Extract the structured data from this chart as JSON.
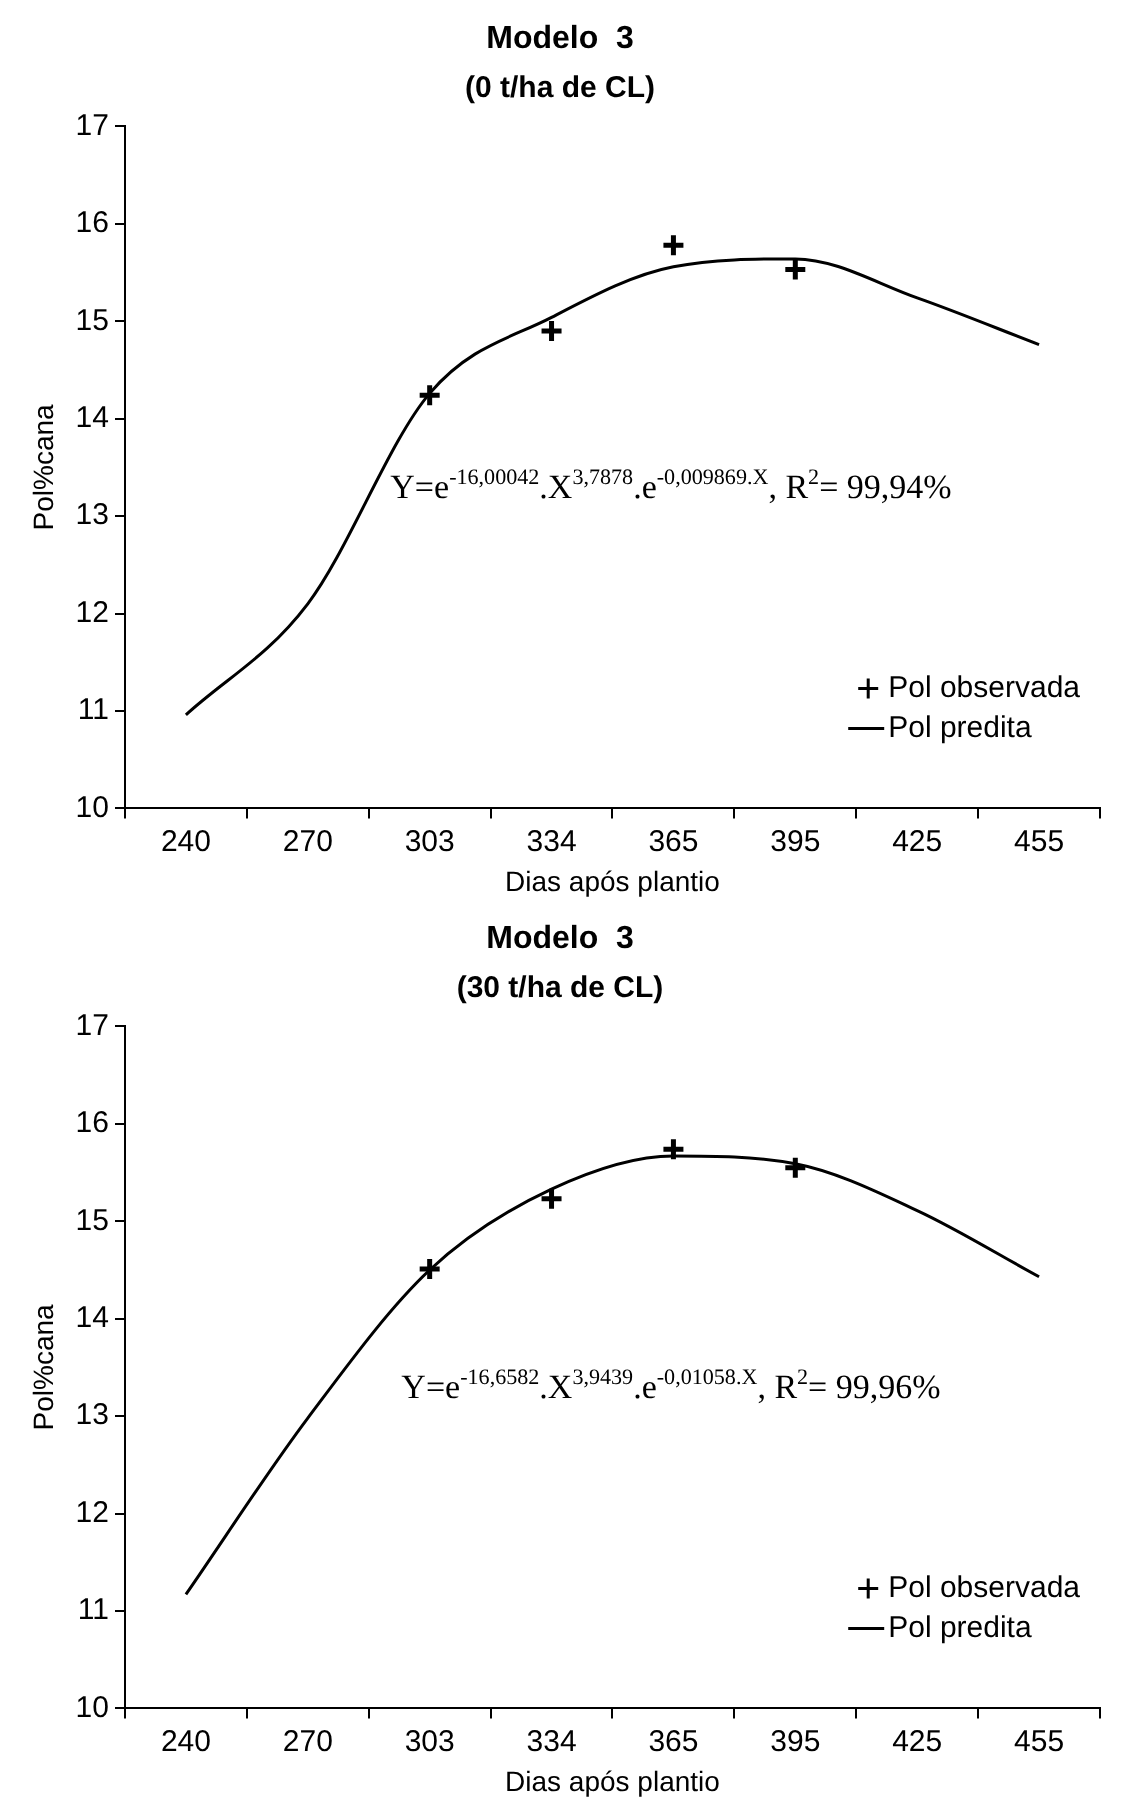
{
  "chart_data": [
    {
      "type": "line",
      "title": "Modelo  3",
      "subtitle": "(0 t/ha de CL)",
      "xlabel": "Dias após plantio",
      "ylabel": "Pol%cana",
      "categories": [
        "240",
        "270",
        "303",
        "334",
        "365",
        "395",
        "425",
        "455"
      ],
      "series": [
        {
          "name": "Pol observada",
          "type": "scatter",
          "color": "#000000",
          "marker": "cross",
          "values": [
            null,
            null,
            14.24,
            14.9,
            15.78,
            15.53,
            null,
            null
          ]
        },
        {
          "name": "Pol predita",
          "type": "line",
          "color": "#000000",
          "marker": "none",
          "values": [
            10.96,
            12.1,
            14.26,
            15.04,
            15.56,
            15.64,
            15.24,
            14.76
          ]
        }
      ],
      "ylim": [
        10,
        17
      ],
      "yticks": [
        10,
        11,
        12,
        13,
        14,
        15,
        16,
        17
      ],
      "grid": false,
      "legend": "bottom right",
      "annotations": [
        "Y=e$^{-16,00042}$.X$^{3,7878}$.e$^{-0,009869.X}$, R$^{2}$= 99,94%"
      ]
    },
    {
      "type": "line",
      "title": "Modelo  3",
      "subtitle": "(30 t/ha de CL)",
      "xlabel": "Dias após plantio",
      "ylabel": "Pol%cana",
      "categories": [
        "240",
        "270",
        "303",
        "334",
        "365",
        "395",
        "425",
        "455"
      ],
      "series": [
        {
          "name": "Pol observada",
          "type": "scatter",
          "color": "#000000",
          "marker": "cross",
          "values": [
            null,
            null,
            14.51,
            15.23,
            15.74,
            15.55,
            null,
            null
          ]
        },
        {
          "name": "Pol predita",
          "type": "line",
          "color": "#000000",
          "marker": "none",
          "values": [
            11.17,
            12.98,
            14.5,
            15.33,
            15.67,
            15.59,
            15.11,
            14.43
          ]
        }
      ],
      "ylim": [
        10,
        17
      ],
      "yticks": [
        10,
        11,
        12,
        13,
        14,
        15,
        16,
        17
      ],
      "grid": false,
      "legend": "bottom right",
      "annotations": [
        "Y=e$^{-16,6582}$.X$^{3,9439}$.e$^{-0,01058.X}$, R$^{2}$= 99,96%"
      ]
    }
  ]
}
